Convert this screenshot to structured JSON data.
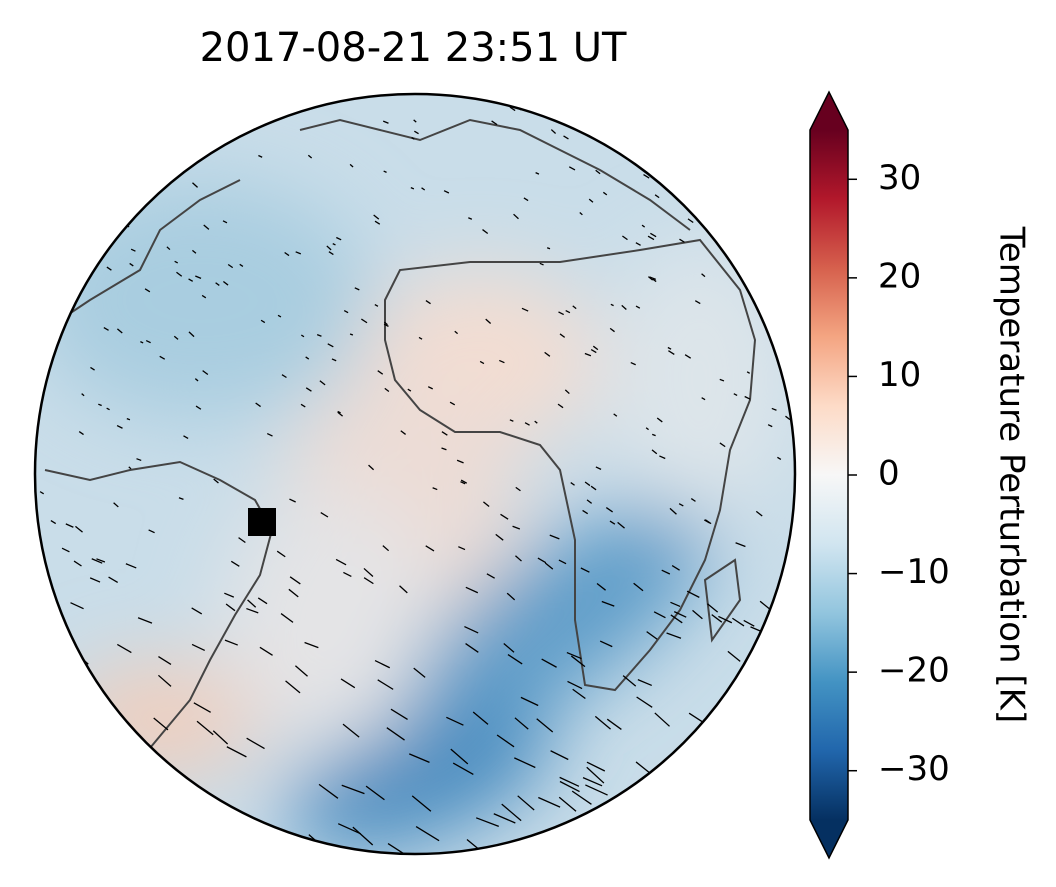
{
  "chart_data": {
    "type": "map",
    "title": "2017-08-21  23:51 UT",
    "colorbar": {
      "label": "Temperature Perturbation [K]",
      "lim": [
        -35,
        35
      ],
      "ticks": [
        {
          "value": -30,
          "label": "−30"
        },
        {
          "value": -20,
          "label": "−20"
        },
        {
          "value": -10,
          "label": "−10"
        },
        0,
        10,
        20,
        30
      ]
    }
  }
}
